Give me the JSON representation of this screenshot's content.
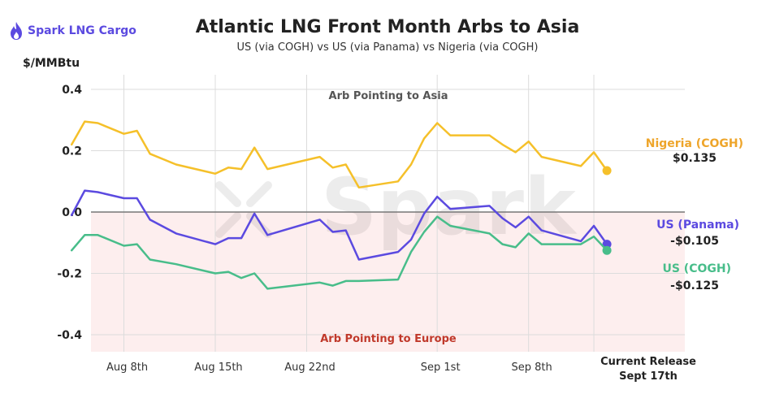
{
  "brand": {
    "name": "Spark LNG Cargo",
    "icon": "flame-icon",
    "color": "#5b4ae0"
  },
  "watermark": "Spark",
  "chart_data": {
    "type": "line",
    "title": "Atlantic LNG Front Month Arbs to Asia",
    "subtitle": "US (via COGH) vs US (via Panama) vs Nigeria (via COGH)",
    "ylabel": "$/MMBtu",
    "xlabel": "",
    "ylim": [
      -0.46,
      0.45
    ],
    "yticks": [
      {
        "value": 0.4,
        "label": "0.4"
      },
      {
        "value": 0.2,
        "label": "0.2"
      },
      {
        "value": 0.0,
        "label": "0.0"
      },
      {
        "value": -0.2,
        "label": "-0.2"
      },
      {
        "value": -0.4,
        "label": "-0.4"
      }
    ],
    "xlim": [
      1,
      44
    ],
    "xticks": [
      {
        "day": 6,
        "label": "Aug 8th"
      },
      {
        "day": 13,
        "label": "Aug 15th"
      },
      {
        "day": 20,
        "label": "Aug 22nd"
      },
      {
        "day": 30,
        "label": "Sep 1st"
      },
      {
        "day": 37,
        "label": "Sep 8th"
      }
    ],
    "current_release": {
      "day": 44,
      "line1": "Current Release",
      "line2": "Sept 17th"
    },
    "x_grid_days": [
      6,
      13,
      20,
      30,
      37,
      42
    ],
    "regions": {
      "asia_label": "Arb Pointing to Asia",
      "europe_label": "Arb Pointing to Europe",
      "europe_color": "#fdeeee",
      "europe_text_color": "#c0392b"
    },
    "series": [
      {
        "name": "Nigeria (COGH)",
        "color": "#f5c02a",
        "label_color": "#eea52a",
        "last_value_label": "$0.135",
        "points": [
          [
            2,
            0.22
          ],
          [
            3,
            0.295
          ],
          [
            4,
            0.29
          ],
          [
            6,
            0.255
          ],
          [
            7,
            0.265
          ],
          [
            8,
            0.19
          ],
          [
            10,
            0.155
          ],
          [
            13,
            0.125
          ],
          [
            14,
            0.145
          ],
          [
            15,
            0.14
          ],
          [
            16,
            0.21
          ],
          [
            17,
            0.14
          ],
          [
            21,
            0.18
          ],
          [
            22,
            0.145
          ],
          [
            23,
            0.155
          ],
          [
            24,
            0.08
          ],
          [
            27,
            0.1
          ],
          [
            28,
            0.155
          ],
          [
            29,
            0.24
          ],
          [
            30,
            0.29
          ],
          [
            31,
            0.25
          ],
          [
            34,
            0.25
          ],
          [
            35,
            0.22
          ],
          [
            36,
            0.195
          ],
          [
            37,
            0.23
          ],
          [
            38,
            0.18
          ],
          [
            41,
            0.15
          ],
          [
            42,
            0.195
          ],
          [
            43,
            0.135
          ]
        ]
      },
      {
        "name": "US (Panama)",
        "color": "#5b4ae0",
        "label_color": "#5b4ae0",
        "last_value_label": "-$0.105",
        "points": [
          [
            2,
            -0.01
          ],
          [
            3,
            0.07
          ],
          [
            4,
            0.065
          ],
          [
            6,
            0.045
          ],
          [
            7,
            0.045
          ],
          [
            8,
            -0.025
          ],
          [
            10,
            -0.07
          ],
          [
            13,
            -0.105
          ],
          [
            14,
            -0.085
          ],
          [
            15,
            -0.085
          ],
          [
            16,
            -0.005
          ],
          [
            17,
            -0.075
          ],
          [
            21,
            -0.025
          ],
          [
            22,
            -0.065
          ],
          [
            23,
            -0.06
          ],
          [
            24,
            -0.155
          ],
          [
            27,
            -0.13
          ],
          [
            28,
            -0.09
          ],
          [
            29,
            -0.005
          ],
          [
            30,
            0.05
          ],
          [
            31,
            0.01
          ],
          [
            34,
            0.02
          ],
          [
            35,
            -0.02
          ],
          [
            36,
            -0.05
          ],
          [
            37,
            -0.015
          ],
          [
            38,
            -0.06
          ],
          [
            41,
            -0.095
          ],
          [
            42,
            -0.045
          ],
          [
            43,
            -0.105
          ]
        ]
      },
      {
        "name": "US (COGH)",
        "color": "#48bd8a",
        "label_color": "#48bd8a",
        "last_value_label": "-$0.125",
        "points": [
          [
            2,
            -0.125
          ],
          [
            3,
            -0.075
          ],
          [
            4,
            -0.075
          ],
          [
            6,
            -0.11
          ],
          [
            7,
            -0.105
          ],
          [
            8,
            -0.155
          ],
          [
            10,
            -0.17
          ],
          [
            13,
            -0.2
          ],
          [
            14,
            -0.195
          ],
          [
            15,
            -0.215
          ],
          [
            16,
            -0.2
          ],
          [
            17,
            -0.25
          ],
          [
            21,
            -0.23
          ],
          [
            22,
            -0.24
          ],
          [
            23,
            -0.225
          ],
          [
            24,
            -0.225
          ],
          [
            27,
            -0.22
          ],
          [
            28,
            -0.13
          ],
          [
            29,
            -0.065
          ],
          [
            30,
            -0.015
          ],
          [
            31,
            -0.045
          ],
          [
            34,
            -0.07
          ],
          [
            35,
            -0.105
          ],
          [
            36,
            -0.115
          ],
          [
            37,
            -0.07
          ],
          [
            38,
            -0.105
          ],
          [
            41,
            -0.105
          ],
          [
            42,
            -0.08
          ],
          [
            43,
            -0.125
          ]
        ]
      }
    ]
  }
}
